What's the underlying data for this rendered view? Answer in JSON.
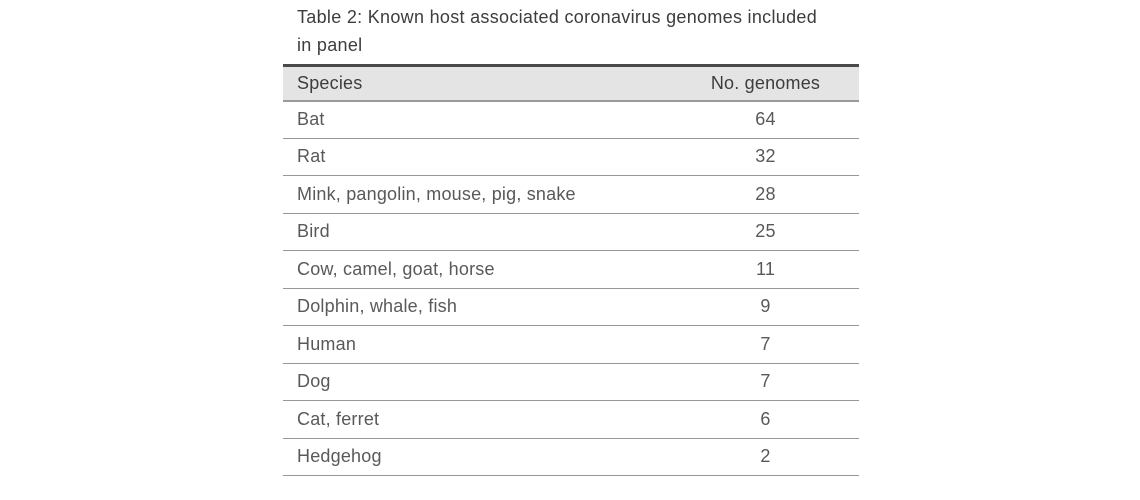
{
  "page": {
    "background": "#ffffff"
  },
  "table": {
    "title": "Table 2: Known host associated coronavirus genomes included in panel",
    "columns": {
      "species": "Species",
      "genomes": "No. genomes"
    },
    "rows": [
      {
        "species": "Bat",
        "genomes": "64"
      },
      {
        "species": "Rat",
        "genomes": "32"
      },
      {
        "species": "Mink, pangolin, mouse, pig, snake",
        "genomes": "28"
      },
      {
        "species": "Bird",
        "genomes": "25"
      },
      {
        "species": "Cow, camel, goat, horse",
        "genomes": "11"
      },
      {
        "species": "Dolphin, whale, fish",
        "genomes": "9"
      },
      {
        "species": "Human",
        "genomes": "7"
      },
      {
        "species": "Dog",
        "genomes": "7"
      },
      {
        "species": "Cat, ferret",
        "genomes": "6"
      },
      {
        "species": "Hedgehog",
        "genomes": "2"
      }
    ],
    "colors": {
      "title_text": "#3d3d3d",
      "header_bg": "#e4e4e4",
      "header_text": "#3d3d3d",
      "row_text": "#595959",
      "top_border": "#4a4a4a",
      "header_border": "#9a9a9a",
      "row_border": "#979797"
    }
  }
}
